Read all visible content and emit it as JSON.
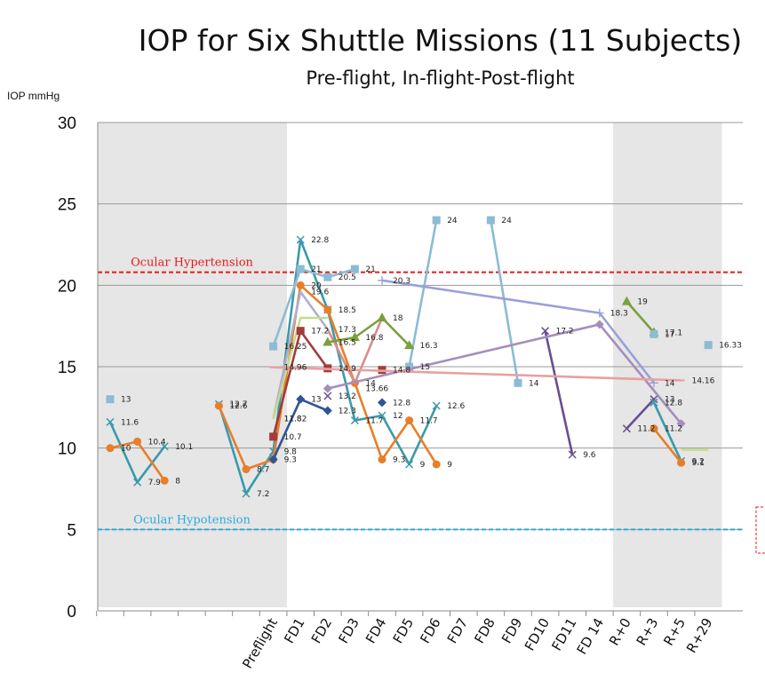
{
  "chart_data": {
    "type": "line",
    "title": "IOP for Six Shuttle Missions (11 Subjects)",
    "subtitle": "Pre-flight, In-flight-Post-flight",
    "ylabel": "IOP mmHg",
    "ylim": [
      0,
      30
    ],
    "yticks": [
      "0",
      "5",
      "10",
      "15",
      "20",
      "25",
      "30"
    ],
    "categories": [
      "",
      "",
      "",
      "",
      "",
      "",
      "Preflight",
      "FD1",
      "FD2",
      "FD3",
      "FD4",
      "FD5",
      "FD6",
      "FD7",
      "FD8",
      "FD9",
      "FD10",
      "FD11",
      "FD 14",
      "R+0",
      "R+3",
      "R+5",
      "R+29"
    ],
    "grid": true,
    "shaded_regions": [
      [
        0,
        6
      ],
      [
        19,
        22
      ]
    ],
    "reference_lines": [
      {
        "label": "Ocular Hypertension",
        "value": 20.8,
        "color": "#e8191a"
      },
      {
        "label": "Ocular Hypotension",
        "value": 5.0,
        "color": "#2aaae2"
      }
    ],
    "series": [
      {
        "color": "#3a9aaa",
        "marker": "x",
        "points": [
          [
            0,
            11.6
          ],
          [
            1,
            7.9
          ],
          [
            2,
            10.1
          ]
        ]
      },
      {
        "color": "#e87e2a",
        "marker": "circle",
        "points": [
          [
            0,
            10
          ],
          [
            1,
            10.4
          ],
          [
            2,
            8
          ]
        ]
      },
      {
        "color": "#8cbbd5",
        "marker": "square",
        "points": [
          [
            0,
            13
          ]
        ]
      },
      {
        "color": "#3a9aaa",
        "marker": "x",
        "points": [
          [
            4,
            12.7
          ],
          [
            5,
            7.2
          ],
          [
            6,
            9.8
          ],
          [
            7,
            22.8
          ],
          [
            8,
            18.5
          ],
          [
            9,
            11.7
          ],
          [
            10,
            12
          ],
          [
            11,
            9
          ],
          [
            12,
            12.6
          ]
        ]
      },
      {
        "color": "#e87e2a",
        "marker": "circle",
        "points": [
          [
            4,
            12.6
          ],
          [
            5,
            8.7
          ],
          [
            6,
            9.3
          ],
          [
            7,
            20
          ],
          [
            8,
            18.5
          ],
          [
            9,
            14
          ],
          [
            10,
            9.3
          ],
          [
            11,
            11.7
          ],
          [
            12,
            9
          ]
        ]
      },
      {
        "color": "#8cbbd5",
        "marker": "square",
        "points": [
          [
            6,
            16.25
          ],
          [
            7,
            21
          ],
          [
            8,
            20.5
          ],
          [
            9,
            21
          ]
        ]
      },
      {
        "color": "#8cbbd5",
        "marker": "square",
        "points": [
          [
            11,
            15
          ],
          [
            12,
            24
          ]
        ]
      },
      {
        "color": "#8cbbd5",
        "marker": "square",
        "points": [
          [
            14,
            24
          ],
          [
            15,
            14
          ]
        ]
      },
      {
        "color": "#b0aed0",
        "marker": "none",
        "points": [
          [
            6,
            11.8
          ],
          [
            7,
            19.6
          ],
          [
            8,
            17.3
          ]
        ]
      },
      {
        "color": "#c4dc8c",
        "marker": "none",
        "points": [
          [
            6,
            11.8
          ],
          [
            7,
            18
          ],
          [
            8,
            18
          ]
        ]
      },
      {
        "color": "#a43c3c",
        "marker": "square",
        "points": [
          [
            6,
            10.7
          ],
          [
            7,
            17.2
          ],
          [
            8,
            14.9
          ]
        ]
      },
      {
        "color": "#2f5597",
        "marker": "diamond",
        "points": [
          [
            6,
            9.3
          ],
          [
            7,
            13
          ],
          [
            8,
            12.3
          ]
        ]
      },
      {
        "color": "#d98c8c",
        "marker": "none",
        "points": [
          [
            8,
            17.3
          ],
          [
            9,
            14
          ],
          [
            10,
            18
          ]
        ]
      },
      {
        "color": "#7aa03c",
        "marker": "triangle",
        "points": [
          [
            8,
            16.5
          ],
          [
            9,
            16.8
          ],
          [
            10,
            18
          ],
          [
            11,
            16.3
          ]
        ]
      },
      {
        "color": "#6a4c93",
        "marker": "x",
        "points": [
          [
            16,
            17.2
          ],
          [
            17,
            9.6
          ]
        ]
      },
      {
        "color": "#7aa03c",
        "marker": "triangle",
        "points": [
          [
            19,
            19
          ],
          [
            20,
            17.1
          ]
        ]
      },
      {
        "color": "#6a4c93",
        "marker": "x",
        "points": [
          [
            19,
            11.2
          ],
          [
            20,
            13
          ]
        ]
      },
      {
        "color": "#3a9aaa",
        "marker": "x",
        "points": [
          [
            20,
            12.8
          ],
          [
            21,
            9.2
          ]
        ]
      },
      {
        "color": "#e87e2a",
        "marker": "circle",
        "points": [
          [
            20,
            11.2
          ],
          [
            21,
            9.1
          ]
        ]
      },
      {
        "color": "#c4dc8c",
        "marker": "none",
        "points": [
          [
            21,
            9.9
          ],
          [
            22,
            9.9
          ]
        ]
      },
      {
        "color": "#8cbbd5",
        "marker": "square",
        "points": [
          [
            20,
            17
          ]
        ]
      },
      {
        "color": "#8cbbd5",
        "marker": "square",
        "points": [
          [
            22,
            16.33
          ]
        ]
      },
      {
        "color": "#a43c3c",
        "marker": "square",
        "points": [
          [
            10,
            14.8
          ]
        ]
      },
      {
        "color": "#2f5597",
        "marker": "diamond",
        "points": [
          [
            10,
            12.8
          ]
        ]
      },
      {
        "color": "#6a4c93",
        "marker": "x",
        "points": [
          [
            8,
            13.2
          ]
        ]
      },
      {
        "color": "#a58dbb",
        "marker": "diamond",
        "points": [
          [
            8,
            13.66
          ],
          [
            18,
            17.6
          ],
          [
            21,
            11.5
          ]
        ]
      },
      {
        "color": "#9aa0d8",
        "marker": "plus",
        "points": [
          [
            10,
            20.3
          ],
          [
            18,
            18.3
          ],
          [
            20,
            14
          ]
        ]
      },
      {
        "color": "#e8a0a0",
        "marker": "dash",
        "points": [
          [
            6,
            14.96
          ],
          [
            21,
            14.16
          ]
        ]
      }
    ],
    "data_labels": [
      {
        "x": 0,
        "y": 13,
        "text": "13"
      },
      {
        "x": 0,
        "y": 11.6,
        "text": "11.6"
      },
      {
        "x": 0,
        "y": 10,
        "text": "10"
      },
      {
        "x": 1,
        "y": 10.4,
        "text": "10.4"
      },
      {
        "x": 1,
        "y": 7.9,
        "text": "7.9"
      },
      {
        "x": 2,
        "y": 10.1,
        "text": "10.1"
      },
      {
        "x": 2,
        "y": 8,
        "text": "8"
      },
      {
        "x": 4,
        "y": 12.7,
        "text": "12.7"
      },
      {
        "x": 4,
        "y": 12.6,
        "text": "12.6"
      },
      {
        "x": 5,
        "y": 8.7,
        "text": "8.7"
      },
      {
        "x": 5,
        "y": 7.2,
        "text": "7.2"
      },
      {
        "x": 6,
        "y": 16.25,
        "text": "16.25"
      },
      {
        "x": 6,
        "y": 14.96,
        "text": "14.96"
      },
      {
        "x": 6,
        "y": 11.8,
        "text": "11.8"
      },
      {
        "x": 6,
        "y": 11.82,
        "text": "11.82"
      },
      {
        "x": 6,
        "y": 10.7,
        "text": "10.7"
      },
      {
        "x": 6,
        "y": 9.8,
        "text": "9.8"
      },
      {
        "x": 6,
        "y": 9.3,
        "text": "9.3"
      },
      {
        "x": 7,
        "y": 22.8,
        "text": "22.8"
      },
      {
        "x": 7,
        "y": 21,
        "text": "21"
      },
      {
        "x": 7,
        "y": 20,
        "text": "20"
      },
      {
        "x": 7,
        "y": 19.6,
        "text": "19.6"
      },
      {
        "x": 7,
        "y": 17.2,
        "text": "17.2"
      },
      {
        "x": 7,
        "y": 13,
        "text": "13"
      },
      {
        "x": 8,
        "y": 20.5,
        "text": "20.5"
      },
      {
        "x": 8,
        "y": 18.5,
        "text": "18.5"
      },
      {
        "x": 8,
        "y": 17.3,
        "text": "17.3"
      },
      {
        "x": 8,
        "y": 16.5,
        "text": "16.5"
      },
      {
        "x": 8,
        "y": 14.9,
        "text": "14.9"
      },
      {
        "x": 8,
        "y": 13.2,
        "text": "13.2"
      },
      {
        "x": 8,
        "y": 12.3,
        "text": "12.3"
      },
      {
        "x": 9,
        "y": 21,
        "text": "21"
      },
      {
        "x": 9,
        "y": 16.8,
        "text": "16.8"
      },
      {
        "x": 9,
        "y": 14,
        "text": "14"
      },
      {
        "x": 9,
        "y": 13.66,
        "text": "13.66"
      },
      {
        "x": 9,
        "y": 11.7,
        "text": "11.7"
      },
      {
        "x": 10,
        "y": 20.3,
        "text": "20.3"
      },
      {
        "x": 10,
        "y": 18,
        "text": "18"
      },
      {
        "x": 10,
        "y": 14.8,
        "text": "14.8"
      },
      {
        "x": 10,
        "y": 12.8,
        "text": "12.8"
      },
      {
        "x": 10,
        "y": 12,
        "text": "12"
      },
      {
        "x": 10,
        "y": 9.3,
        "text": "9.3"
      },
      {
        "x": 11,
        "y": 16.3,
        "text": "16.3"
      },
      {
        "x": 11,
        "y": 15,
        "text": "15"
      },
      {
        "x": 11,
        "y": 11.7,
        "text": "11.7"
      },
      {
        "x": 11,
        "y": 9,
        "text": "9"
      },
      {
        "x": 12,
        "y": 24,
        "text": "24"
      },
      {
        "x": 12,
        "y": 12.6,
        "text": "12.6"
      },
      {
        "x": 12,
        "y": 9,
        "text": "9"
      },
      {
        "x": 14,
        "y": 24,
        "text": "24"
      },
      {
        "x": 15,
        "y": 14,
        "text": "14"
      },
      {
        "x": 16,
        "y": 17.2,
        "text": "17.2"
      },
      {
        "x": 17,
        "y": 9.6,
        "text": "9.6"
      },
      {
        "x": 18,
        "y": 18.3,
        "text": "18.3"
      },
      {
        "x": 19,
        "y": 19,
        "text": "19"
      },
      {
        "x": 19,
        "y": 11.2,
        "text": "11.2"
      },
      {
        "x": 20,
        "y": 17.1,
        "text": "17.1"
      },
      {
        "x": 20,
        "y": 17,
        "text": "17"
      },
      {
        "x": 20,
        "y": 14,
        "text": "14"
      },
      {
        "x": 20,
        "y": 13,
        "text": "13"
      },
      {
        "x": 20,
        "y": 12.8,
        "text": "12.8"
      },
      {
        "x": 20,
        "y": 11.2,
        "text": "11.2"
      },
      {
        "x": 21,
        "y": 14.16,
        "text": "14.16"
      },
      {
        "x": 21,
        "y": 9.2,
        "text": "9.2"
      },
      {
        "x": 21,
        "y": 9.1,
        "text": "9.1"
      },
      {
        "x": 22,
        "y": 16.33,
        "text": "16.33"
      }
    ]
  }
}
